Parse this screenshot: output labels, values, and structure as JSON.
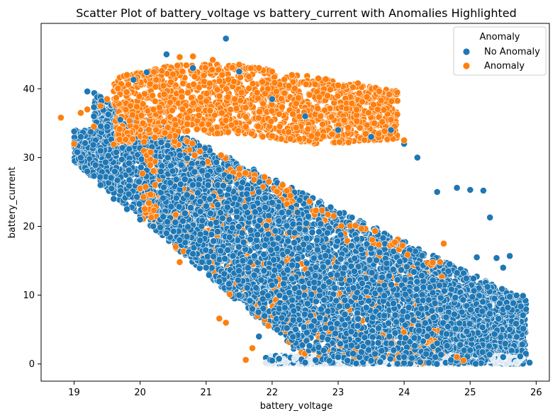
{
  "chart_data": {
    "type": "scatter",
    "title": "Scatter Plot of battery_voltage vs battery_current with Anomalies Highlighted",
    "xlabel": "battery_voltage",
    "ylabel": "battery_current",
    "xlim": [
      18.5,
      26.2
    ],
    "ylim": [
      -2.5,
      49.5
    ],
    "xticks": [
      19,
      20,
      21,
      22,
      23,
      24,
      25,
      26
    ],
    "yticks": [
      0,
      10,
      20,
      30,
      40
    ],
    "grid": false,
    "legend": {
      "title": "Anomaly",
      "placement": "top-right",
      "entries": [
        {
          "label": "No Anomaly",
          "color": "#1f77b4"
        },
        {
          "label": "Anomaly",
          "color": "#ff7f0e"
        }
      ]
    },
    "series": [
      {
        "name": "No Anomaly",
        "color": "#1f77b4",
        "points": [
          [
            19.0,
            33.8
          ],
          [
            19.1,
            33.0
          ],
          [
            19.2,
            39.6
          ],
          [
            19.3,
            36.0
          ],
          [
            19.4,
            31.0
          ],
          [
            19.5,
            34.5
          ],
          [
            19.7,
            35.5
          ],
          [
            19.9,
            41.3
          ],
          [
            20.1,
            42.4
          ],
          [
            20.4,
            45.0
          ],
          [
            20.8,
            43.0
          ],
          [
            21.3,
            47.3
          ],
          [
            21.5,
            42.5
          ],
          [
            22.0,
            38.5
          ],
          [
            22.5,
            36.0
          ],
          [
            23.0,
            34.0
          ],
          [
            23.5,
            33.0
          ],
          [
            23.8,
            34.0
          ],
          [
            24.0,
            32.0
          ],
          [
            24.2,
            30.0
          ],
          [
            24.5,
            25.0
          ],
          [
            24.8,
            25.6
          ],
          [
            25.0,
            25.3
          ],
          [
            25.2,
            25.2
          ],
          [
            25.3,
            21.3
          ],
          [
            25.1,
            15.5
          ],
          [
            25.4,
            15.4
          ],
          [
            25.6,
            15.7
          ],
          [
            25.5,
            14.0
          ],
          [
            25.8,
            9.9
          ],
          [
            25.8,
            7.1
          ],
          [
            25.9,
            0.2
          ],
          [
            25.5,
            1.0
          ],
          [
            25.0,
            2.0
          ],
          [
            24.5,
            3.0
          ],
          [
            24.0,
            1.0
          ],
          [
            23.5,
            0.5
          ],
          [
            23.0,
            1.0
          ],
          [
            22.5,
            0.2
          ],
          [
            22.0,
            0.5
          ],
          [
            21.8,
            4.0
          ],
          [
            21.7,
            8.0
          ],
          [
            21.5,
            10.0
          ],
          [
            21.2,
            12.0
          ],
          [
            21.0,
            14.0
          ],
          [
            20.8,
            16.0
          ],
          [
            20.6,
            18.0
          ],
          [
            20.4,
            19.0
          ],
          [
            20.2,
            20.0
          ],
          [
            20.0,
            21.0
          ],
          [
            19.8,
            22.5
          ],
          [
            19.6,
            24.0
          ],
          [
            19.4,
            26.0
          ],
          [
            19.2,
            28.0
          ],
          [
            19.1,
            30.0
          ]
        ]
      },
      {
        "name": "Anomaly",
        "color": "#ff7f0e",
        "points": [
          [
            18.8,
            35.8
          ],
          [
            19.0,
            32.0
          ],
          [
            19.1,
            36.5
          ],
          [
            19.2,
            37.0
          ],
          [
            19.3,
            34.5
          ],
          [
            19.4,
            37.5
          ],
          [
            19.5,
            38.5
          ],
          [
            19.8,
            42.0
          ],
          [
            20.6,
            44.6
          ],
          [
            20.8,
            44.7
          ],
          [
            21.1,
            44.2
          ],
          [
            21.5,
            43.5
          ],
          [
            21.8,
            43.0
          ],
          [
            22.0,
            42.5
          ],
          [
            22.3,
            42.0
          ],
          [
            22.7,
            41.5
          ],
          [
            23.0,
            40.5
          ],
          [
            23.3,
            40.8
          ],
          [
            23.6,
            37.0
          ],
          [
            23.8,
            35.5
          ],
          [
            24.0,
            32.5
          ],
          [
            20.6,
            14.8
          ],
          [
            21.2,
            6.6
          ],
          [
            21.3,
            6.0
          ],
          [
            21.6,
            0.6
          ],
          [
            21.7,
            2.3
          ],
          [
            24.6,
            17.5
          ],
          [
            24.8,
            1.0
          ],
          [
            24.9,
            0.5
          ]
        ]
      }
    ],
    "point_density_note": ""
  }
}
